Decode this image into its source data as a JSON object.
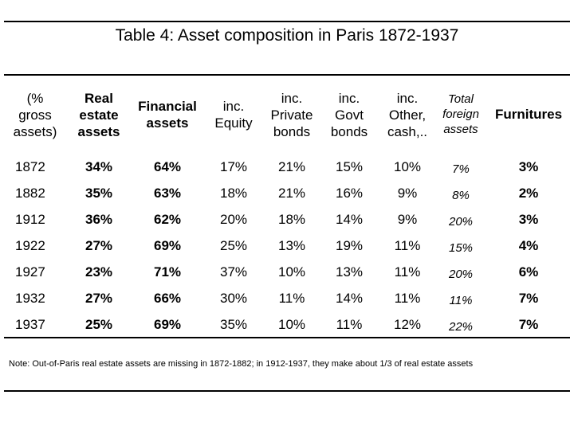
{
  "title": "Table 4: Asset composition in Paris 1872-1937",
  "columns": [
    {
      "label": "(% gross assets)",
      "lines": [
        "(%",
        "gross",
        "assets)"
      ]
    },
    {
      "label": "Real estate assets",
      "lines": [
        "Real",
        "estate",
        "assets"
      ]
    },
    {
      "label": "Financial assets",
      "lines": [
        "Financial",
        "assets"
      ]
    },
    {
      "label": "inc. Equity",
      "lines": [
        "inc.",
        "Equity"
      ]
    },
    {
      "label": "inc. Private bonds",
      "lines": [
        "inc.",
        "Private",
        "bonds"
      ]
    },
    {
      "label": "inc. Govt bonds",
      "lines": [
        "inc.",
        "Govt",
        "bonds"
      ]
    },
    {
      "label": "inc. Other, cash,..",
      "lines": [
        "inc.",
        "Other,",
        "cash,.."
      ]
    },
    {
      "label": "Total foreign assets",
      "lines": [
        "Total",
        "foreign",
        "assets"
      ]
    },
    {
      "label": "Furnitures",
      "lines": [
        "Furnitures"
      ]
    }
  ],
  "rows": [
    [
      "1872",
      "34%",
      "64%",
      "17%",
      "21%",
      "15%",
      "10%",
      "7%",
      "3%"
    ],
    [
      "1882",
      "35%",
      "63%",
      "18%",
      "21%",
      "16%",
      "9%",
      "8%",
      "2%"
    ],
    [
      "1912",
      "36%",
      "62%",
      "20%",
      "18%",
      "14%",
      "9%",
      "20%",
      "3%"
    ],
    [
      "1922",
      "27%",
      "69%",
      "25%",
      "13%",
      "19%",
      "11%",
      "15%",
      "4%"
    ],
    [
      "1927",
      "23%",
      "71%",
      "37%",
      "10%",
      "13%",
      "11%",
      "20%",
      "6%"
    ],
    [
      "1932",
      "27%",
      "66%",
      "30%",
      "11%",
      "14%",
      "11%",
      "11%",
      "7%"
    ],
    [
      "1937",
      "25%",
      "69%",
      "35%",
      "10%",
      "11%",
      "12%",
      "22%",
      "7%"
    ]
  ],
  "note": "Note: Out-of-Paris real estate assets are missing in 1872-1882; in 1912-1937, they make about 1/3 of real estate assets"
}
